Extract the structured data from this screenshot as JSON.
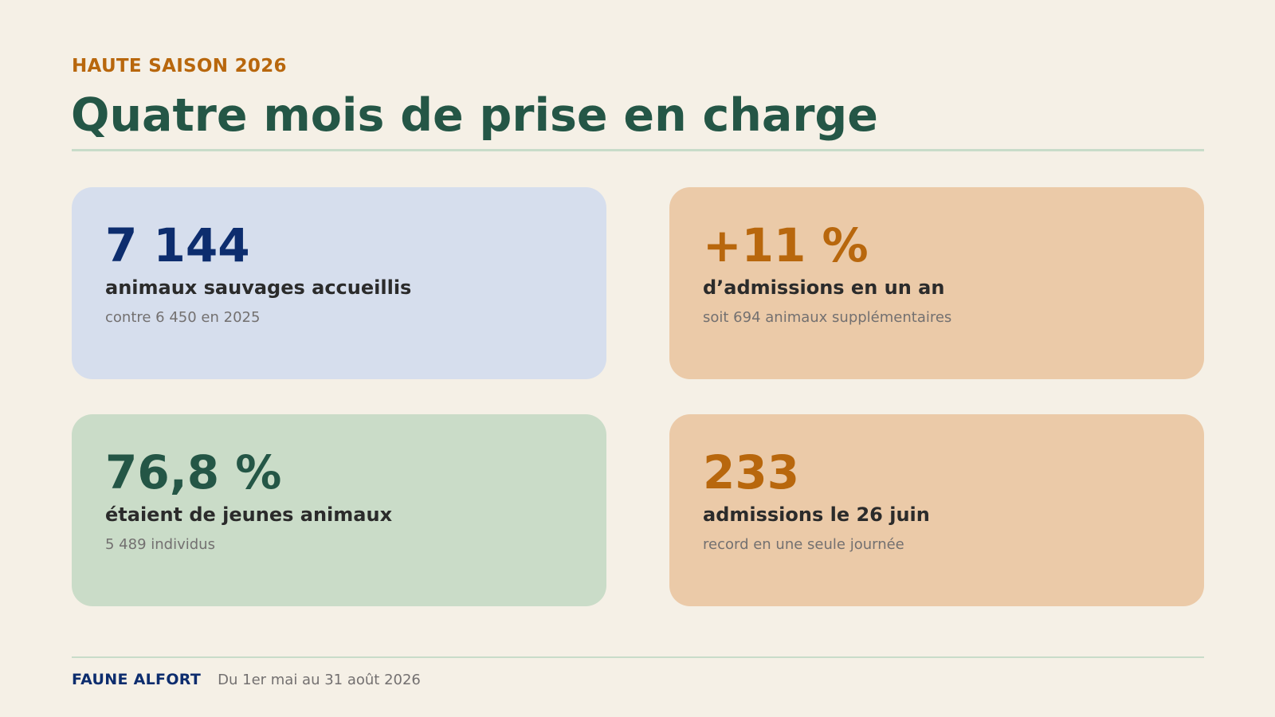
{
  "header": {
    "kicker": "HAUTE SAISON 2026",
    "title": "Quatre mois de prise en charge"
  },
  "cards": [
    {
      "value": "7 144",
      "label": "animaux sauvages accueillis",
      "note": "contre 6 450 en 2025",
      "bg_color": "#d6deed",
      "value_color": "#0d2d6e"
    },
    {
      "value": "+11 %",
      "label": "d’admissions en un an",
      "note": "soit 694 animaux supplémentaires",
      "bg_color": "#ebcaa8",
      "value_color": "#b8670d"
    },
    {
      "value": "76,8 %",
      "label": "étaient de jeunes animaux",
      "note": "5 489 individus",
      "bg_color": "#cadcc8",
      "value_color": "#245646"
    },
    {
      "value": "233",
      "label": "admissions le 26 juin",
      "note": "record en une seule journée",
      "bg_color": "#ebcaa8",
      "value_color": "#b8670d"
    }
  ],
  "footer": {
    "org": "FAUNE ALFORT",
    "period": "Du 1er mai au 31 août 2026"
  }
}
